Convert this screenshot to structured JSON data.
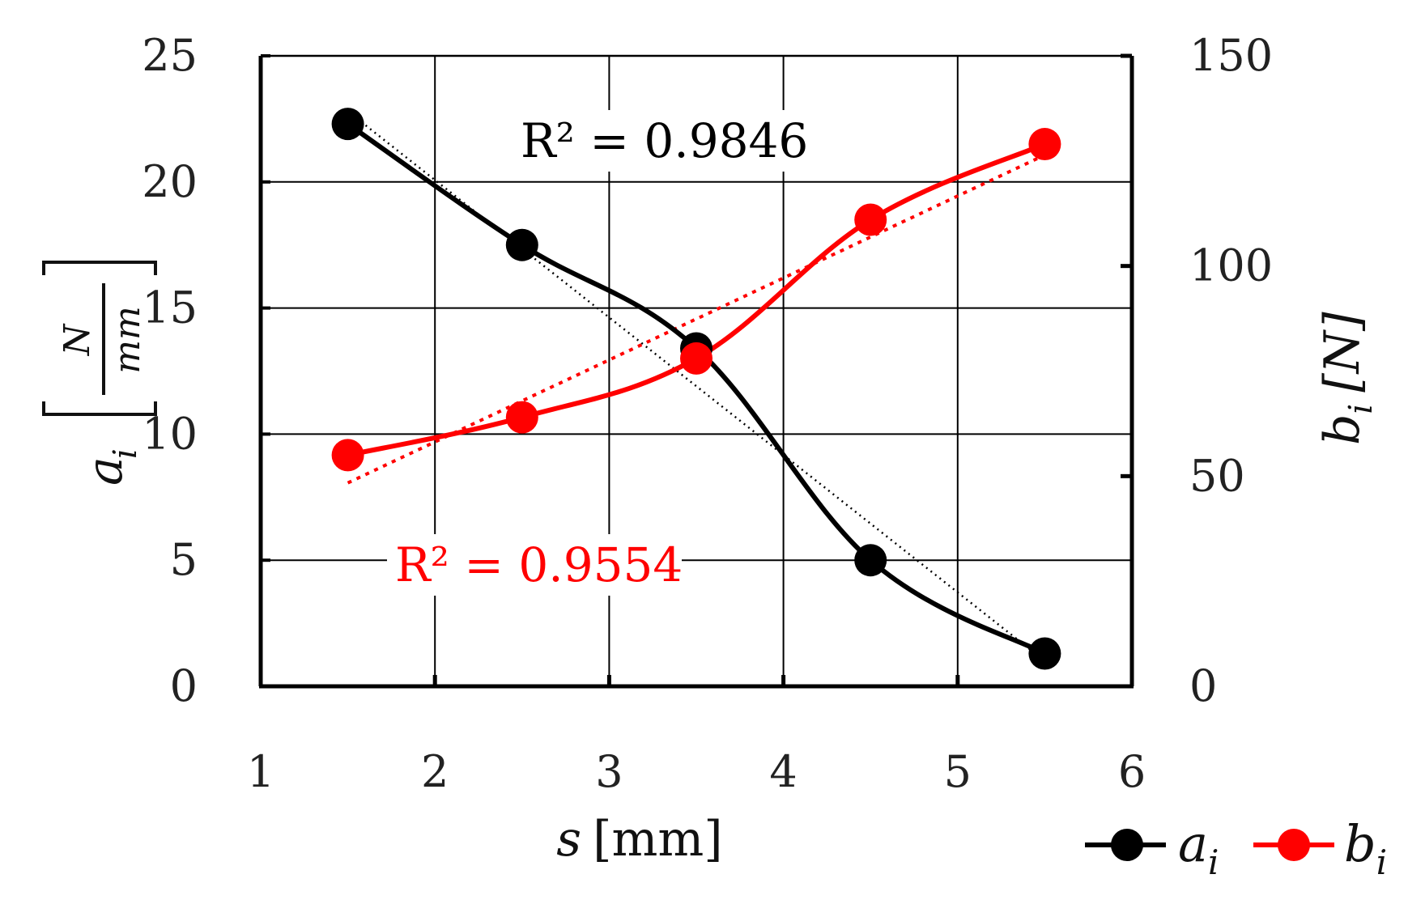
{
  "chart_data": {
    "type": "line",
    "x": [
      1.5,
      2.5,
      3.5,
      4.5,
      5.5
    ],
    "xlim": [
      1,
      6
    ],
    "xticks": [
      1,
      2,
      3,
      4,
      5,
      6
    ],
    "xlabel": {
      "var": "s",
      "unit": "[mm]"
    },
    "y_left": {
      "label": {
        "var": "a",
        "sub": "i",
        "unit_num": "N",
        "unit_den": "mm"
      },
      "lim": [
        0,
        25
      ],
      "ticks": [
        0,
        5,
        10,
        15,
        20,
        25
      ]
    },
    "y_right": {
      "label": {
        "var": "b",
        "sub": "i",
        "unit": "[N]"
      },
      "lim": [
        0,
        150
      ],
      "ticks": [
        0,
        50,
        100,
        150
      ]
    },
    "series": [
      {
        "name": "a",
        "name_sub": "i",
        "axis": "left",
        "color": "#000000",
        "values": [
          22.3,
          17.5,
          13.4,
          5.0,
          1.3
        ],
        "trendline": {
          "type": "linear",
          "r2_label": "R² = 0.9846",
          "color": "#000000"
        }
      },
      {
        "name": "b",
        "name_sub": "i",
        "axis": "right",
        "color": "#ff0000",
        "values": [
          55,
          64,
          78,
          111,
          129
        ],
        "trendline": {
          "type": "linear",
          "r2_label": "R² = 0.9554",
          "color": "#ff0000"
        }
      }
    ],
    "grid": true,
    "legend": "bottom-right"
  }
}
